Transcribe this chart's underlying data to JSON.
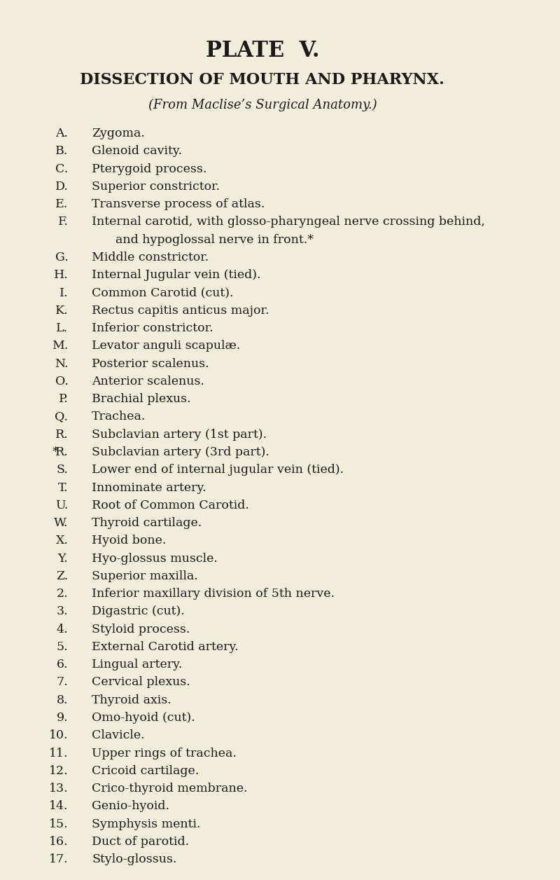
{
  "background_color": "#f0edda",
  "title": "PLATE  V.",
  "subtitle": "DISSECTION OF MOUTH AND PHARYNX.",
  "source": "(From Maclise’s Surgical Anatomy.)",
  "items": [
    [
      "A.",
      "Zygoma."
    ],
    [
      "B.",
      "Glenoid cavity."
    ],
    [
      "C.",
      "Pterygoid process."
    ],
    [
      "D.",
      "Superior constrictor."
    ],
    [
      "E.",
      "Transverse process of atlas."
    ],
    [
      "F.",
      "Internal carotid, with glosso-pharyngeal nerve crossing behind,\n        and hypoglossal nerve in front.*"
    ],
    [
      "G.",
      "Middle constrictor."
    ],
    [
      "H.",
      "Internal Jugular vein (tied)."
    ],
    [
      "I.",
      "Common Carotid (cut)."
    ],
    [
      "K.",
      "Rectus capitis anticus major."
    ],
    [
      "L.",
      "Inferior constrictor."
    ],
    [
      "M.",
      "Levator anguli scapulæ."
    ],
    [
      "N.",
      "Posterior scalenus."
    ],
    [
      "O.",
      "Anterior scalenus."
    ],
    [
      "P.",
      "Brachial plexus."
    ],
    [
      "Q.",
      "Trachea."
    ],
    [
      "R.",
      "Subclavian artery (1st part)."
    ],
    [
      "*R.",
      "Subclavian artery (3rd part)."
    ],
    [
      "S.",
      "Lower end of internal jugular vein (tied)."
    ],
    [
      "T.",
      "Innominate artery."
    ],
    [
      "U.",
      "Root of Common Carotid."
    ],
    [
      "W.",
      "Thyroid cartilage."
    ],
    [
      "X.",
      "Hyoid bone."
    ],
    [
      "Y.",
      "Hyo-glossus muscle."
    ],
    [
      "Z.",
      "Superior maxilla."
    ],
    [
      "2.",
      "Inferior maxillary division of 5th nerve."
    ],
    [
      "3.",
      "Digastric (cut)."
    ],
    [
      "4.",
      "Styloid process."
    ],
    [
      "5.",
      "External Carotid artery."
    ],
    [
      "6.",
      "Lingual artery."
    ],
    [
      "7.",
      "Cervical plexus."
    ],
    [
      "8.",
      "Thyroid axis."
    ],
    [
      "9.",
      "Omo-hyoid (cut)."
    ],
    [
      "10.",
      "Clavicle."
    ],
    [
      "11.",
      "Upper rings of trachea."
    ],
    [
      "12.",
      "Cricoid cartilage."
    ],
    [
      "13.",
      "Crico-thyroid membrane."
    ],
    [
      "14.",
      "Genio-hyoid."
    ],
    [
      "15.",
      "Symphysis menti."
    ],
    [
      "16.",
      "Duct of parotid."
    ],
    [
      "17.",
      "Stylo-glossus."
    ]
  ],
  "title_fontsize": 22,
  "subtitle_fontsize": 16,
  "source_fontsize": 13,
  "item_fontsize": 12.5,
  "text_color": "#1a1a1a"
}
